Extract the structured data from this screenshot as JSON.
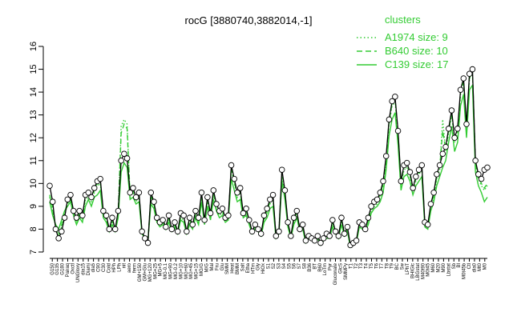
{
  "chart_data": {
    "type": "line",
    "title": "rocG [3880740,3882014,-1]",
    "xlabel": "",
    "ylabel": "",
    "ylim": [
      7,
      16
    ],
    "yticks": [
      7,
      8,
      9,
      10,
      11,
      12,
      13,
      14,
      15,
      16
    ],
    "xtick_labels": [
      "G150",
      "G135",
      "G180",
      "Pairaq",
      "Oxctl",
      "UNGloxy",
      "dia15",
      "Diami",
      "dia5",
      "C90",
      "C30",
      "Cold",
      "HPh",
      "LPh",
      "nit",
      "aero",
      "ferm",
      "GM+150",
      "GM+Glu",
      "MG+120",
      "MG+25",
      "MG+5",
      "MG-0.1",
      "MG+90",
      "MG-0.2",
      "MG+10",
      "MG+60",
      "MG+45",
      "MG+15",
      "MG/G",
      "M/G",
      "Mal",
      "Fru",
      "Glu",
      "SMM",
      "Heat",
      "BMM",
      "Salt",
      "Etha",
      "HTm",
      "Gly",
      "HiOx",
      "S1",
      "S2",
      "S3",
      "S4",
      "S5",
      "S6",
      "S7",
      "S8",
      "B36",
      "BT",
      "B60",
      "LoTm",
      "Pyr",
      "Gluconate",
      "GlcS",
      "SMMPy",
      "T1",
      "T2",
      "T3",
      "T4",
      "T5",
      "T6",
      "T7",
      "T8",
      "T9",
      "BC",
      "Sw",
      "LPhT",
      "BHIGlc",
      "LBGstat",
      "M40t90",
      "M0t45",
      "M60",
      "M20",
      "M90",
      "Lbstat",
      "Sb",
      "BI",
      "M0t45b",
      "Ctl",
      "dia0",
      "Mt0",
      "M0"
    ],
    "legend": {
      "title": "clusters",
      "placement": "top-right",
      "entries": [
        {
          "label": "A1974 size: 9",
          "style": "dotted"
        },
        {
          "label": "B640 size: 10",
          "style": "dashed"
        },
        {
          "label": "C139 size: 17",
          "style": "solid"
        }
      ]
    },
    "series": [
      {
        "name": "black",
        "values": [
          9.9,
          9.2,
          8.0,
          7.6,
          7.9,
          8.5,
          9.3,
          9.5,
          8.8,
          8.5,
          8.8,
          8.6,
          9.5,
          9.6,
          9.4,
          9.8,
          10.1,
          10.2,
          8.8,
          8.6,
          8.0,
          8.5,
          8.0,
          8.8,
          11.0,
          11.3,
          11.1,
          9.6,
          9.8,
          9.4,
          9.6,
          7.9,
          7.6,
          7.4,
          9.6,
          9.2,
          8.5,
          8.3,
          8.4,
          8.1,
          8.6,
          8.0,
          8.3,
          7.9,
          8.7,
          8.6,
          7.9,
          8.5,
          8.2,
          8.8,
          8.5,
          9.6,
          8.4,
          9.4,
          8.7,
          9.7,
          9.1,
          8.8,
          8.9,
          8.5,
          8.6,
          10.8,
          10.2,
          9.6,
          9.8,
          8.7,
          8.9,
          8.4,
          7.9,
          8.2,
          8.0,
          7.8,
          8.6,
          8.9,
          9.3,
          9.5,
          7.7,
          7.9,
          10.6,
          9.7,
          8.3,
          7.7,
          8.5,
          8.8,
          8.0,
          8.2,
          7.5,
          7.7,
          7.6,
          7.5,
          7.7,
          7.4,
          7.6,
          7.8,
          7.7,
          8.4,
          7.9,
          7.7,
          8.5,
          7.8,
          8.1,
          7.3,
          7.4,
          7.5,
          8.3,
          8.2,
          8.0,
          8.5,
          9.0,
          9.2,
          9.3,
          9.6,
          10.1,
          11.2,
          12.8,
          13.6,
          13.8,
          12.3,
          10.1,
          10.8,
          10.9,
          10.5,
          9.8,
          10.3,
          10.6,
          10.8,
          8.3,
          8.2,
          9.1,
          9.6,
          10.4,
          10.8,
          11.3,
          11.6,
          12.4,
          13.2,
          12.0,
          12.4,
          14.1,
          14.6,
          12.6,
          14.8,
          15.0,
          11.0,
          10.4,
          10.2,
          10.6,
          10.7
        ]
      },
      {
        "name": "green-solid",
        "values": [
          9.2,
          8.6,
          8.2,
          8.0,
          8.4,
          8.8,
          9.0,
          9.2,
          8.6,
          8.2,
          8.5,
          8.3,
          9.0,
          9.3,
          9.0,
          9.4,
          9.5,
          9.7,
          8.5,
          8.3,
          7.9,
          8.2,
          7.9,
          8.5,
          10.5,
          10.9,
          10.7,
          9.3,
          9.4,
          9.1,
          9.2,
          7.8,
          7.6,
          7.5,
          9.1,
          8.9,
          8.3,
          8.1,
          8.2,
          8.0,
          8.3,
          7.9,
          8.1,
          7.8,
          8.4,
          8.3,
          7.8,
          8.2,
          8.0,
          8.5,
          8.2,
          9.2,
          8.2,
          9.0,
          8.4,
          9.3,
          8.8,
          8.5,
          8.6,
          8.3,
          8.4,
          10.2,
          9.7,
          9.2,
          9.3,
          8.5,
          8.6,
          8.2,
          7.8,
          8.0,
          7.9,
          7.7,
          8.3,
          8.5,
          8.9,
          9.0,
          7.6,
          7.8,
          10.1,
          9.3,
          8.1,
          7.6,
          8.2,
          8.5,
          7.9,
          8.0,
          7.4,
          7.6,
          7.5,
          7.4,
          7.6,
          7.3,
          7.5,
          7.6,
          7.6,
          8.1,
          7.8,
          7.6,
          8.2,
          7.7,
          7.9,
          7.2,
          7.3,
          7.4,
          8.1,
          8.0,
          7.9,
          8.2,
          8.7,
          8.9,
          9.0,
          9.2,
          9.6,
          10.6,
          12.1,
          12.8,
          13.1,
          11.7,
          9.7,
          10.3,
          10.4,
          10.1,
          9.5,
          9.9,
          10.1,
          10.3,
          8.1,
          8.0,
          8.8,
          9.2,
          9.9,
          10.3,
          10.7,
          11.0,
          11.8,
          12.5,
          11.4,
          11.8,
          13.4,
          13.9,
          12.0,
          14.1,
          14.3,
          10.5,
          9.9,
          9.6,
          9.2,
          9.4
        ]
      },
      {
        "name": "green-dashed",
        "values": [
          9.5,
          8.9,
          8.1,
          7.8,
          8.2,
          8.7,
          9.2,
          9.4,
          8.8,
          8.4,
          8.7,
          8.5,
          9.4,
          9.5,
          9.3,
          9.7,
          10.0,
          10.1,
          8.7,
          8.5,
          8.0,
          8.4,
          8.0,
          8.7,
          12.2,
          12.6,
          12.4,
          9.5,
          9.7,
          9.3,
          9.5,
          7.9,
          7.6,
          7.5,
          9.5,
          9.1,
          8.4,
          8.2,
          8.3,
          8.1,
          8.5,
          8.0,
          8.2,
          7.9,
          8.6,
          8.5,
          7.9,
          8.4,
          8.1,
          8.7,
          8.4,
          9.5,
          8.3,
          9.3,
          8.6,
          9.6,
          9.0,
          8.7,
          8.8,
          8.4,
          8.5,
          10.7,
          10.1,
          9.5,
          9.7,
          8.6,
          8.8,
          8.3,
          7.9,
          8.1,
          8.0,
          7.8,
          8.5,
          8.8,
          9.2,
          9.4,
          7.7,
          7.9,
          10.5,
          9.6,
          8.2,
          7.7,
          8.4,
          8.7,
          8.0,
          8.1,
          7.5,
          7.7,
          7.6,
          7.5,
          7.7,
          7.4,
          7.6,
          7.7,
          7.7,
          8.3,
          7.9,
          7.7,
          8.4,
          7.8,
          8.0,
          7.3,
          7.4,
          7.5,
          8.2,
          8.1,
          8.0,
          8.4,
          8.9,
          9.1,
          9.2,
          9.5,
          10.0,
          11.1,
          12.7,
          13.5,
          13.7,
          12.2,
          10.0,
          10.7,
          10.8,
          10.4,
          9.7,
          10.2,
          10.5,
          10.7,
          8.2,
          8.1,
          9.0,
          9.5,
          10.3,
          10.7,
          12.3,
          11.5,
          12.3,
          13.1,
          11.9,
          12.3,
          14.0,
          14.5,
          12.5,
          14.7,
          14.9,
          10.9,
          10.3,
          10.0,
          9.8,
          10.0
        ]
      },
      {
        "name": "green-dotted",
        "values": [
          9.4,
          8.8,
          8.1,
          7.7,
          8.1,
          8.6,
          9.1,
          9.3,
          8.7,
          8.3,
          8.6,
          8.4,
          9.3,
          9.4,
          9.2,
          9.6,
          9.9,
          10.0,
          8.6,
          8.4,
          7.9,
          8.3,
          7.9,
          8.6,
          12.5,
          12.8,
          12.6,
          9.4,
          9.6,
          9.2,
          9.4,
          7.8,
          7.6,
          7.4,
          9.4,
          9.0,
          8.4,
          8.2,
          8.3,
          8.0,
          8.4,
          7.9,
          8.2,
          7.8,
          8.5,
          8.4,
          7.8,
          8.3,
          8.1,
          8.6,
          8.3,
          9.4,
          8.3,
          9.2,
          8.5,
          9.5,
          8.9,
          8.6,
          8.7,
          8.4,
          8.5,
          10.6,
          10.0,
          9.4,
          9.6,
          8.6,
          8.7,
          8.3,
          7.8,
          8.1,
          7.9,
          7.7,
          8.4,
          8.7,
          9.1,
          9.3,
          7.7,
          7.8,
          10.4,
          9.5,
          8.2,
          7.6,
          8.3,
          8.6,
          7.9,
          8.1,
          7.4,
          7.6,
          7.5,
          7.4,
          7.6,
          7.3,
          7.5,
          7.7,
          7.6,
          8.2,
          7.8,
          7.6,
          8.3,
          7.7,
          8.0,
          7.2,
          7.3,
          7.4,
          8.2,
          8.1,
          7.9,
          8.3,
          8.8,
          9.0,
          9.1,
          9.4,
          9.9,
          11.0,
          12.6,
          13.4,
          13.6,
          12.1,
          9.9,
          10.6,
          10.7,
          10.3,
          9.7,
          10.1,
          10.4,
          10.6,
          8.2,
          8.1,
          8.9,
          9.4,
          10.2,
          10.6,
          12.8,
          11.4,
          12.2,
          13.0,
          11.8,
          12.2,
          13.9,
          14.4,
          12.4,
          14.6,
          14.8,
          10.8,
          10.2,
          9.9,
          9.7,
          9.9
        ]
      }
    ],
    "grid": false
  }
}
